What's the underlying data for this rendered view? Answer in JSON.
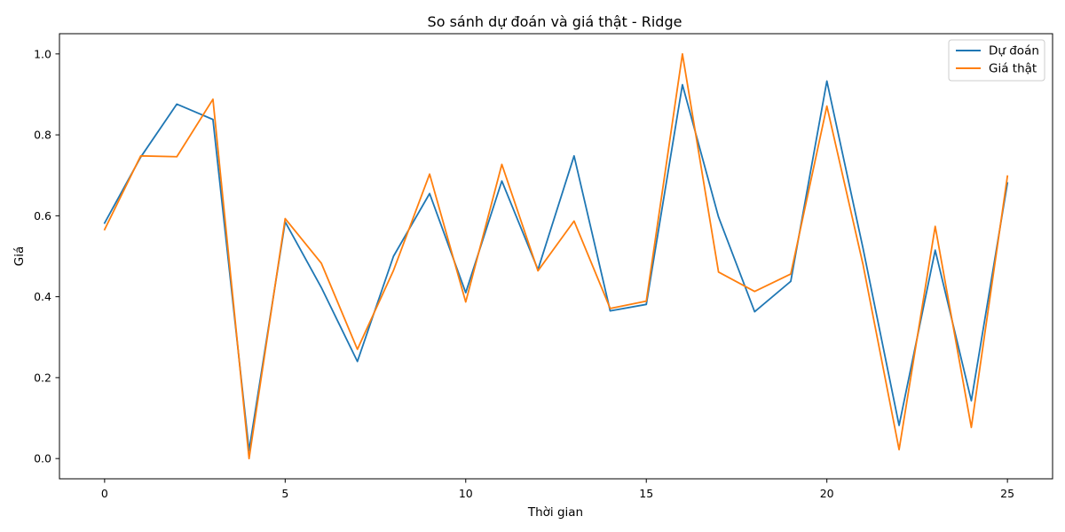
{
  "chart_data": {
    "type": "line",
    "title": "So sánh dự đoán và giá thật - Ridge",
    "xlabel": "Thời gian",
    "ylabel": "Giá",
    "xlim": [
      -1.25,
      26.25
    ],
    "ylim": [
      -0.05,
      1.05
    ],
    "xticks": [
      0,
      5,
      10,
      15,
      20,
      25
    ],
    "yticks": [
      0.0,
      0.2,
      0.4,
      0.6,
      0.8,
      1.0
    ],
    "xtick_labels": [
      "0",
      "5",
      "10",
      "15",
      "20",
      "25"
    ],
    "ytick_labels": [
      "0.0",
      "0.2",
      "0.4",
      "0.6",
      "0.8",
      "1.0"
    ],
    "grid": false,
    "legend_position": "top-right",
    "x": [
      0,
      1,
      2,
      3,
      4,
      5,
      6,
      7,
      8,
      9,
      10,
      11,
      12,
      13,
      14,
      15,
      16,
      17,
      18,
      19,
      20,
      21,
      22,
      23,
      24,
      25
    ],
    "series": [
      {
        "name": "Dự đoán",
        "color": "#1f77b4",
        "values": [
          0.582,
          0.745,
          0.876,
          0.838,
          0.02,
          0.585,
          0.423,
          0.24,
          0.5,
          0.655,
          0.41,
          0.686,
          0.467,
          0.748,
          0.365,
          0.381,
          0.924,
          0.597,
          0.363,
          0.438,
          0.933,
          0.52,
          0.082,
          0.515,
          0.143,
          0.681
        ]
      },
      {
        "name": "Giá thật",
        "color": "#ff7f0e",
        "values": [
          0.566,
          0.748,
          0.746,
          0.888,
          0.0,
          0.593,
          0.483,
          0.27,
          0.465,
          0.703,
          0.387,
          0.727,
          0.464,
          0.587,
          0.371,
          0.389,
          1.0,
          0.461,
          0.413,
          0.456,
          0.871,
          0.48,
          0.022,
          0.574,
          0.077,
          0.698
        ]
      }
    ]
  }
}
